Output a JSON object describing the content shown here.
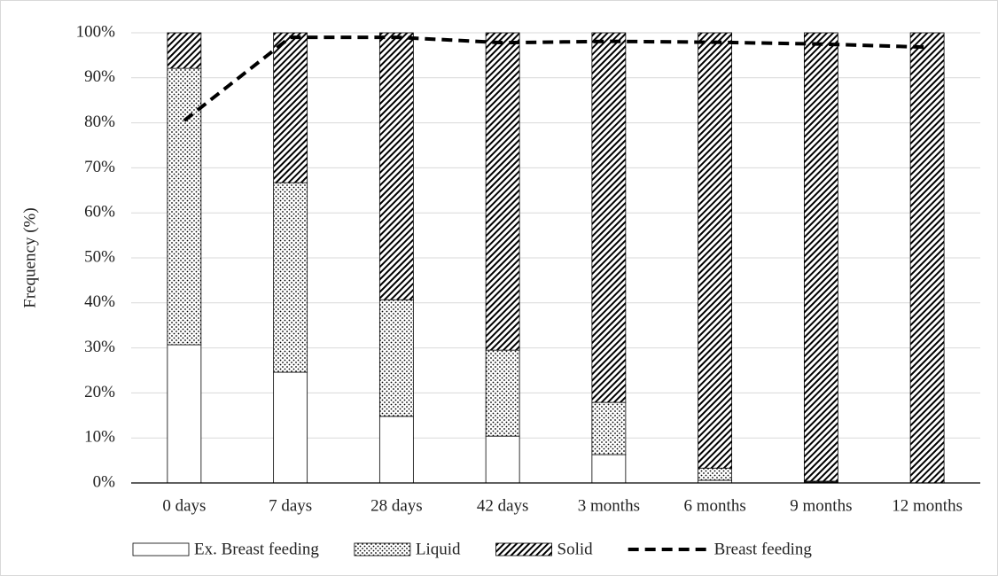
{
  "chart_data": {
    "type": "bar",
    "stacked": true,
    "y_label": "Frequency (%)",
    "categories": [
      "0 days",
      "7 days",
      "28 days",
      "42 days",
      "3 months",
      "6 months",
      "9 months",
      "12 months"
    ],
    "series": [
      {
        "name": "Ex. Breast feeding",
        "type": "bar",
        "color": "#000000",
        "pattern": "none",
        "values": [
          30.7,
          24.6,
          14.8,
          10.4,
          6.3,
          0.6,
          0.2,
          0
        ]
      },
      {
        "name": "Liquid",
        "type": "bar",
        "color": "#000000",
        "pattern": "dots",
        "values": [
          61.4,
          42.1,
          25.9,
          19.1,
          11.6,
          2.7,
          0.2,
          0
        ]
      },
      {
        "name": "Solid",
        "type": "bar",
        "color": "#000000",
        "pattern": "stripes",
        "values": [
          7.9,
          33.3,
          59.3,
          70.5,
          82.1,
          96.7,
          99.6,
          100
        ]
      },
      {
        "name": "Breast feeding",
        "type": "line",
        "color": "#000000",
        "dashed": true,
        "values": [
          80.5,
          99,
          99,
          97.8,
          98.1,
          97.9,
          97.5,
          96.8
        ]
      }
    ],
    "ylim": [
      0,
      100
    ],
    "yticks": [
      {
        "value": 0,
        "label": "0%"
      },
      {
        "value": 10,
        "label": "10%"
      },
      {
        "value": 20,
        "label": "20%"
      },
      {
        "value": 30,
        "label": "30%"
      },
      {
        "value": 40,
        "label": "40%"
      },
      {
        "value": 50,
        "label": "50%"
      },
      {
        "value": 60,
        "label": "60%"
      },
      {
        "value": 70,
        "label": "70%"
      },
      {
        "value": 80,
        "label": "80%"
      },
      {
        "value": 90,
        "label": "90%"
      },
      {
        "value": 100,
        "label": "100%"
      }
    ],
    "grid": true,
    "legend": "bottom"
  }
}
